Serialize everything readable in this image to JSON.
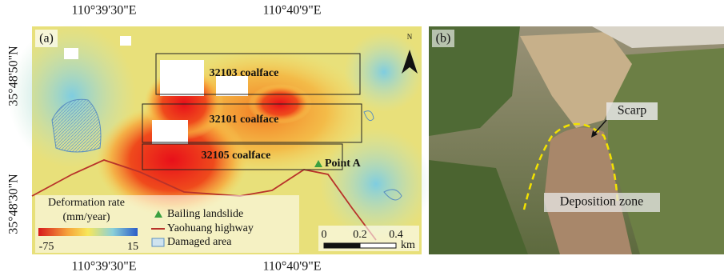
{
  "panel_a": {
    "label": "(a)",
    "longitude_labels": [
      "110°39'30\"E",
      "110°40'9\"E"
    ],
    "latitude_labels": [
      "35°48'50\"N",
      "35°48'30\"N"
    ],
    "north": "N",
    "coalfaces": [
      "32103 coalface",
      "32101 coalface",
      "32105 coalface"
    ],
    "point": "Point A",
    "colorbar": {
      "title": "Deformation rate",
      "unit": "(mm/year)",
      "min": -75,
      "max": 15
    },
    "legend": [
      "Bailing landslide",
      "Yaohuang highway",
      "Damaged area"
    ],
    "scale_bar": {
      "ticks": [
        0,
        0.2,
        0.4
      ],
      "unit": "km"
    }
  },
  "panel_b": {
    "label": "(b)",
    "annotations": [
      "Scarp",
      "Deposition zone"
    ]
  }
}
